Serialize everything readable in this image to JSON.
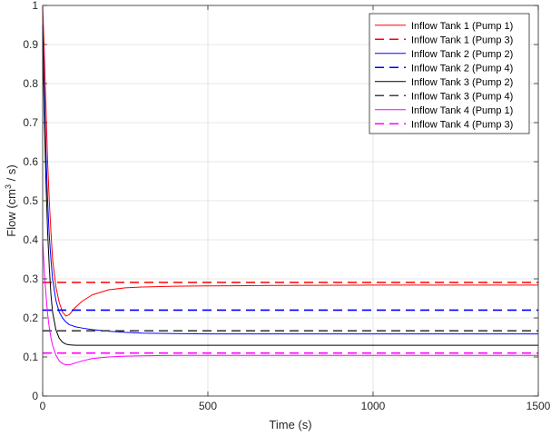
{
  "chart_data": {
    "type": "line",
    "title": "",
    "xlabel": "Time (s)",
    "ylabel": {
      "prefix": "Flow (cm",
      "sup": "3",
      "suffix": " / s)"
    },
    "xlim": [
      0,
      1500
    ],
    "ylim": [
      0,
      1
    ],
    "xticks": [
      0,
      500,
      1000,
      1500
    ],
    "yticks": [
      0,
      0.1,
      0.2,
      0.3,
      0.4,
      0.5,
      0.6,
      0.7,
      0.8,
      0.9,
      1
    ],
    "xtick_labels": [
      "0",
      "500",
      "1000",
      "1500"
    ],
    "ytick_labels": [
      "0",
      "0.1",
      "0.2",
      "0.3",
      "0.4",
      "0.5",
      "0.6",
      "0.7",
      "0.8",
      "0.9",
      "1"
    ],
    "grid": true,
    "legend_position": "top-right",
    "series": [
      {
        "name": "Inflow Tank 1 (Pump 1)",
        "color": "#ff0000",
        "style": "solid",
        "x": [
          0,
          5,
          10,
          15,
          20,
          25,
          30,
          40,
          50,
          60,
          70,
          80,
          90,
          100,
          120,
          150,
          200,
          250,
          300,
          400,
          500,
          700,
          1000,
          1500
        ],
        "y": [
          1.0,
          0.88,
          0.74,
          0.6,
          0.5,
          0.42,
          0.35,
          0.28,
          0.24,
          0.215,
          0.205,
          0.208,
          0.218,
          0.228,
          0.243,
          0.259,
          0.272,
          0.277,
          0.279,
          0.281,
          0.282,
          0.283,
          0.284,
          0.284
        ]
      },
      {
        "name": "Inflow Tank 1 (Pump 3)",
        "color": "#ff0000",
        "style": "dashed",
        "x": [
          0,
          1500
        ],
        "y": [
          0.291,
          0.291
        ]
      },
      {
        "name": "Inflow Tank 2 (Pump 2)",
        "color": "#0000ff",
        "style": "solid",
        "x": [
          0,
          5,
          10,
          15,
          20,
          25,
          30,
          40,
          50,
          60,
          70,
          80,
          100,
          120,
          150,
          200,
          250,
          300,
          400,
          500,
          700,
          1000,
          1500
        ],
        "y": [
          0.95,
          0.78,
          0.62,
          0.5,
          0.41,
          0.35,
          0.3,
          0.245,
          0.215,
          0.2,
          0.19,
          0.183,
          0.177,
          0.174,
          0.17,
          0.166,
          0.163,
          0.161,
          0.16,
          0.159,
          0.159,
          0.159,
          0.159
        ]
      },
      {
        "name": "Inflow Tank 2 (Pump 4)",
        "color": "#0000ff",
        "style": "dashed",
        "x": [
          0,
          1500
        ],
        "y": [
          0.22,
          0.22
        ]
      },
      {
        "name": "Inflow Tank 3 (Pump 2)",
        "color": "#000000",
        "style": "solid",
        "x": [
          0,
          5,
          10,
          15,
          20,
          25,
          30,
          40,
          50,
          60,
          70,
          80,
          100,
          120,
          150,
          200,
          250,
          300,
          400,
          500,
          700,
          1000,
          1500
        ],
        "y": [
          0.93,
          0.72,
          0.55,
          0.42,
          0.33,
          0.26,
          0.215,
          0.17,
          0.148,
          0.138,
          0.133,
          0.131,
          0.13,
          0.13,
          0.13,
          0.13,
          0.13,
          0.13,
          0.13,
          0.13,
          0.13,
          0.13,
          0.13
        ]
      },
      {
        "name": "Inflow Tank 3 (Pump 4)",
        "color": "#404040",
        "style": "dashed",
        "x": [
          0,
          1500
        ],
        "y": [
          0.167,
          0.167
        ]
      },
      {
        "name": "Inflow Tank 4 (Pump 1)",
        "color": "#ff00ff",
        "style": "solid",
        "x": [
          0,
          5,
          10,
          15,
          20,
          25,
          30,
          40,
          50,
          60,
          70,
          80,
          90,
          100,
          120,
          150,
          200,
          250,
          300,
          400,
          500,
          700,
          1000,
          1500
        ],
        "y": [
          0.4,
          0.32,
          0.26,
          0.21,
          0.175,
          0.15,
          0.13,
          0.105,
          0.09,
          0.083,
          0.08,
          0.08,
          0.082,
          0.085,
          0.09,
          0.096,
          0.1,
          0.102,
          0.103,
          0.104,
          0.104,
          0.104,
          0.104,
          0.104
        ]
      },
      {
        "name": "Inflow Tank 4 (Pump 3)",
        "color": "#ff00ff",
        "style": "dashed",
        "x": [
          0,
          1500
        ],
        "y": [
          0.11,
          0.11
        ]
      }
    ]
  }
}
